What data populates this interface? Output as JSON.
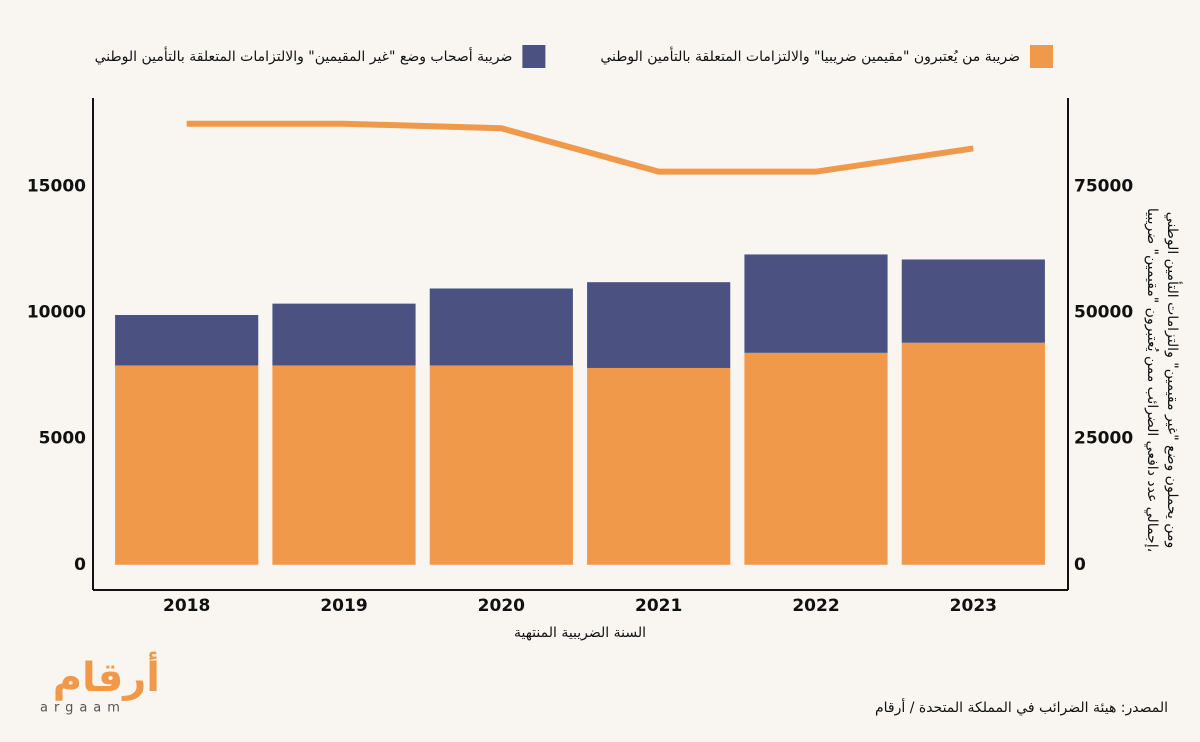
{
  "chart_data": {
    "type": "bar",
    "stacked": true,
    "categories": [
      "2018",
      "2019",
      "2020",
      "2021",
      "2022",
      "2023"
    ],
    "series": [
      {
        "name": "ضريبة من يُعتبرون \"مقيمين ضريبيا\" والالتزامات المتعلقة بالتأمين الوطني",
        "color": "#f0994a",
        "values": [
          7900,
          7900,
          7900,
          7800,
          8400,
          8800
        ]
      },
      {
        "name": "ضريبة أصحاب وضع \"غير المقيمين\" والالتزامات المتعلقة بالتأمين الوطني",
        "color": "#4b5282",
        "values": [
          2000,
          2450,
          3050,
          3400,
          3900,
          3300
        ]
      },
      {
        "type": "line",
        "axis": "y2",
        "color": "#f0994a",
        "values": [
          87400,
          87400,
          86500,
          77900,
          77900,
          82500
        ]
      }
    ],
    "xlabel": "السنة الضريبية المنتهية",
    "y2label": [
      "إجمالي عدد دافعي الضرائب ممن يُعتبرون \"مقيمين\" ضريبيا،",
      "ومن يحملون وضع \"غير مقيمين\" والتزامات التأمين الوطني"
    ],
    "ylim": [
      -1000,
      18500
    ],
    "yticks": [
      0,
      5000,
      10000,
      15000
    ],
    "y2lim": [
      -5000,
      92500
    ],
    "y2ticks": [
      0,
      25000,
      50000,
      75000
    ],
    "grid": false,
    "legend": "top",
    "source": "المصدر: هيئة الضرائب في المملكة المتحدة / أرقام",
    "logo": "أرقام",
    "logo_sub": "argaam"
  }
}
